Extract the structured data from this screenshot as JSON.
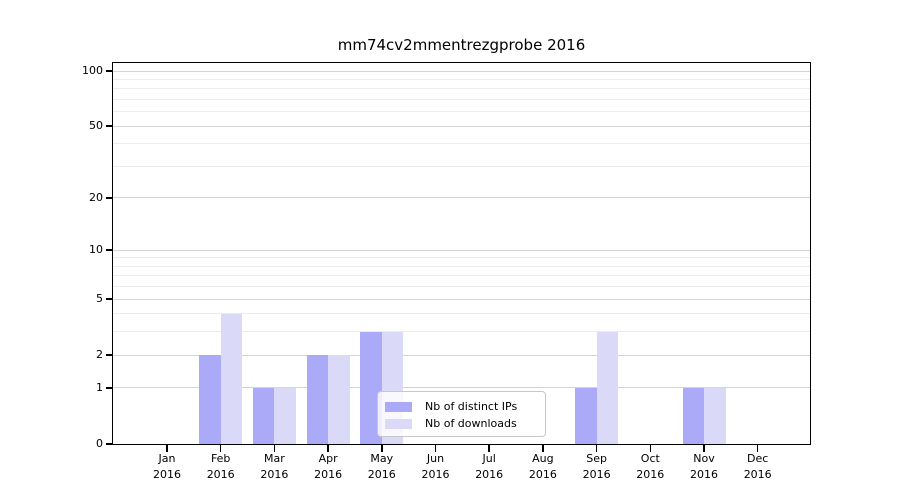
{
  "chart_data": {
    "type": "bar",
    "title": "mm74cv2mmentrezgprobe 2016",
    "x": {
      "months": [
        "Jan",
        "Feb",
        "Mar",
        "Apr",
        "May",
        "Jun",
        "Jul",
        "Aug",
        "Sep",
        "Oct",
        "Nov",
        "Dec"
      ],
      "year": "2016"
    },
    "series": [
      {
        "name": "Nb of distinct IPs",
        "color": "#aaaaf8",
        "values": [
          0,
          2,
          1,
          2,
          3,
          0,
          0,
          0,
          1,
          0,
          1,
          0
        ]
      },
      {
        "name": "Nb of downloads",
        "color": "#dadaf8",
        "values": [
          0,
          4,
          1,
          2,
          3,
          0,
          0,
          0,
          3,
          0,
          1,
          0
        ]
      }
    ],
    "y_axis": {
      "scale": "log10(value+1)",
      "tick_values": [
        0,
        1,
        2,
        5,
        10,
        20,
        50,
        100
      ],
      "minor_gridline_values": [
        3,
        4,
        6,
        7,
        8,
        9,
        30,
        40,
        60,
        70,
        80,
        90
      ],
      "range": [
        0,
        100
      ]
    },
    "legend": {
      "position": "inside-bottom-center"
    },
    "colors": {
      "axis": "#000000",
      "grid_major": "#d4d4d4",
      "grid_minor": "#ececec"
    }
  }
}
